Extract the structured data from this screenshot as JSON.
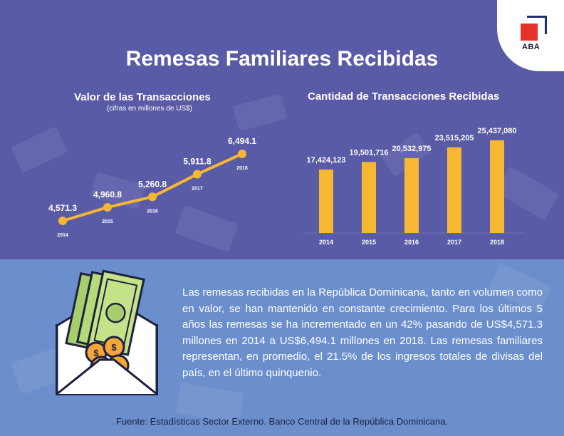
{
  "header": {
    "title": "Remesas Familiares Recibidas",
    "logo_text": "ABA"
  },
  "colors": {
    "background_top": "#5a5ba7",
    "background_bottom": "#6b8fcc",
    "accent": "#f7b733",
    "logo_red": "#e4322b",
    "logo_navy": "#23306b"
  },
  "chart_data": [
    {
      "type": "line",
      "title": "Valor de las Transacciones",
      "subtitle": "(cifras en millones de US$)",
      "x": [
        "2014",
        "2015",
        "2016",
        "2017",
        "2018"
      ],
      "values": [
        4571.3,
        4960.8,
        5260.8,
        5911.8,
        6494.1
      ],
      "value_labels": [
        "4,571.3",
        "4,960.8",
        "5,260.8",
        "5,911.8",
        "6,494.1"
      ],
      "grid": false,
      "legend": "none"
    },
    {
      "type": "bar",
      "title": "Cantidad de Transacciones Recibidas",
      "categories": [
        "2014",
        "2015",
        "2016",
        "2017",
        "2018"
      ],
      "values": [
        17424123,
        19501716,
        20532975,
        23515205,
        25437080
      ],
      "value_labels": [
        "17,424,123",
        "19,501,716",
        "20,532,975",
        "23,515,205",
        "25,437,080"
      ],
      "ylim": [
        0,
        25437080
      ],
      "grid": false,
      "legend": "none"
    }
  ],
  "body": {
    "paragraph": "Las remesas recibidas en la República Dominicana, tanto en volumen como en valor, se han mantenido en constante crecimiento. Para los últimos 5 años las remesas se ha incrementado en un 42% pasando de US$4,571.3 millones en 2014  a US$6,494.1 millones en 2018. Las remesas familiares representan, en promedio, el 21.5% de los ingresos totales de divisas del país, en el último quinquenio."
  },
  "footer": {
    "source": "Fuente: Estadísticas Sector Externo. Banco Central de la República Dominicana."
  },
  "icons": {
    "illustration": "envelope-money-icon",
    "currency_symbol": "$"
  }
}
